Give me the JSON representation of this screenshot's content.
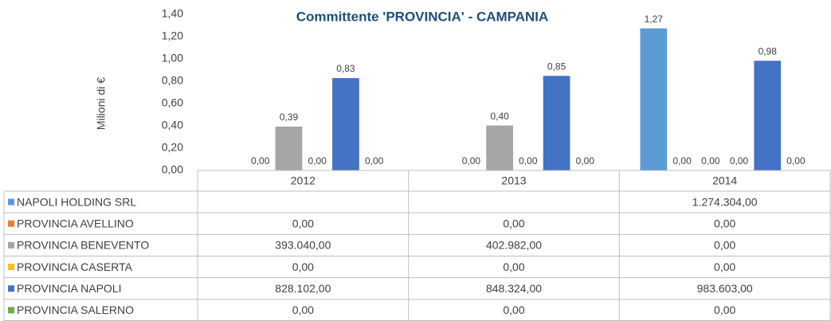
{
  "chart_data": {
    "type": "bar",
    "title": "Committente 'PROVINCIA' - CAMPANIA",
    "y_label": "Milioni di €",
    "categories": [
      "2012",
      "2013",
      "2014"
    ],
    "ylim": [
      0,
      1.4
    ],
    "yticks": [
      {
        "value": 0,
        "label": "0,00"
      },
      {
        "value": 0.2,
        "label": "0,20"
      },
      {
        "value": 0.4,
        "label": "0,40"
      },
      {
        "value": 0.6,
        "label": "0,60"
      },
      {
        "value": 0.8,
        "label": "0,80"
      },
      {
        "value": 1.0,
        "label": "1,00"
      },
      {
        "value": 1.2,
        "label": "1,20"
      },
      {
        "value": 1.4,
        "label": "1,40"
      }
    ],
    "grid": false,
    "series": [
      {
        "name": "NAPOLI HOLDING SRL",
        "color": "#5b9bd5",
        "values": [
          null,
          null,
          1.274304
        ],
        "value_labels": [
          null,
          null,
          "1,27"
        ],
        "table_labels": [
          null,
          null,
          "1.274.304,00"
        ]
      },
      {
        "name": "PROVINCIA AVELLINO",
        "color": "#ed7d31",
        "values": [
          0,
          0,
          0
        ],
        "value_labels": [
          "0,00",
          "0,00",
          "0,00"
        ],
        "table_labels": [
          "0,00",
          "0,00",
          "0,00"
        ]
      },
      {
        "name": "PROVINCIA BENEVENTO",
        "color": "#a5a5a5",
        "values": [
          0.39304,
          0.402982,
          0
        ],
        "value_labels": [
          "0,39",
          "0,40",
          "0,00"
        ],
        "table_labels": [
          "393.040,00",
          "402.982,00",
          "0,00"
        ]
      },
      {
        "name": "PROVINCIA CASERTA",
        "color": "#ffc000",
        "values": [
          0,
          0,
          0
        ],
        "value_labels": [
          "0,00",
          "0,00",
          "0,00"
        ],
        "table_labels": [
          "0,00",
          "0,00",
          "0,00"
        ]
      },
      {
        "name": "PROVINCIA NAPOLI",
        "color": "#4472c4",
        "values": [
          0.828102,
          0.848324,
          0.983603
        ],
        "value_labels": [
          "0,83",
          "0,85",
          "0,98"
        ],
        "table_labels": [
          "828.102,00",
          "848.324,00",
          "983.603,00"
        ]
      },
      {
        "name": "PROVINCIA SALERNO",
        "color": "#70ad47",
        "values": [
          0,
          0,
          0
        ],
        "value_labels": [
          "0,00",
          "0,00",
          "0,00"
        ],
        "table_labels": [
          "0,00",
          "0,00",
          "0,00"
        ]
      }
    ]
  }
}
